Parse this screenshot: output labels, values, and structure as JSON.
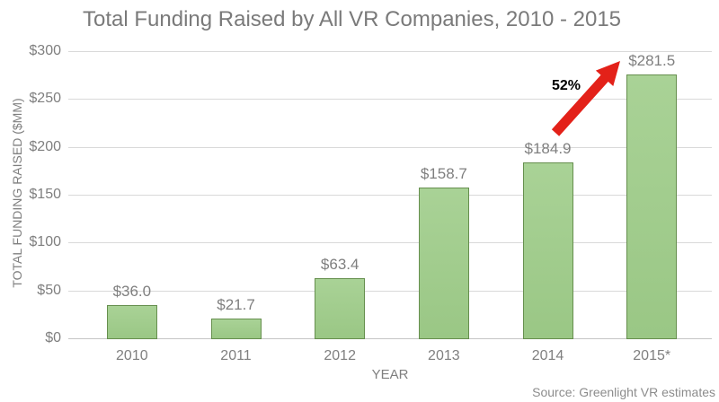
{
  "title": "Total Funding Raised by All VR Companies, 2010 - 2015",
  "source": "Source:  Greenlight VR estimates",
  "annotation": {
    "text": "52%"
  },
  "chart_data": {
    "type": "bar",
    "title": "Total Funding Raised by All VR Companies, 2010 - 2015",
    "categories": [
      "2010",
      "2011",
      "2012",
      "2013",
      "2014",
      "2015*"
    ],
    "values": [
      36.0,
      21.7,
      63.4,
      158.7,
      184.9,
      281.5
    ],
    "bar_labels": [
      "$36.0",
      "$21.7",
      "$63.4",
      "$158.7",
      "$184.9",
      "$281.5"
    ],
    "xlabel": "YEAR",
    "ylabel": "TOTAL FUNDING RAISED ($MM)",
    "ylim": [
      0,
      300
    ],
    "yticks": [
      {
        "value": 0,
        "label": "$0"
      },
      {
        "value": 50,
        "label": "$50"
      },
      {
        "value": 100,
        "label": "$100"
      },
      {
        "value": 150,
        "label": "$150"
      },
      {
        "value": 200,
        "label": "$200"
      },
      {
        "value": 250,
        "label": "$250"
      },
      {
        "value": 300,
        "label": "$300"
      }
    ],
    "grid": true,
    "legend": "none",
    "annotation": {
      "text": "52%",
      "between": [
        "2014",
        "2015*"
      ],
      "style": "red-arrow"
    },
    "colors": {
      "bar_fill": "#9ac785",
      "bar_border": "#668f4e",
      "gridline": "#d9d9d9",
      "text_gray": "#7f7f7f",
      "arrow_red": "#e32119",
      "annotation_text": "#000000"
    }
  }
}
